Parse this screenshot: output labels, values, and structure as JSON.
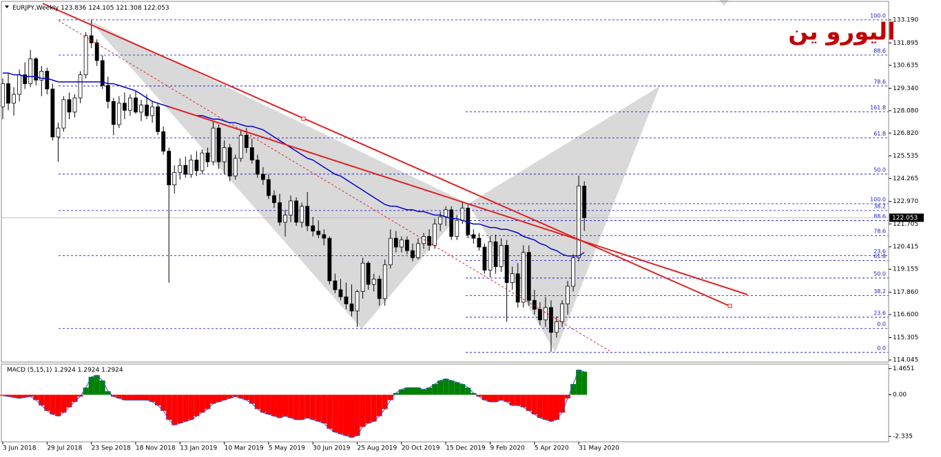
{
  "chart_data": {
    "type": "candlestick",
    "title": "اليورو ين",
    "symbol": "EURJPY,Weekly",
    "categories": [
      "3 Jun 2018",
      null,
      null,
      null,
      null,
      null,
      null,
      null,
      "29 Jul 2018",
      null,
      null,
      null,
      null,
      null,
      null,
      null,
      "23 Sep 2018",
      null,
      null,
      null,
      null,
      null,
      null,
      null,
      "18 Nov 2018",
      null,
      null,
      null,
      null,
      null,
      null,
      null,
      "13 Jan 2019",
      null,
      null,
      null,
      null,
      null,
      null,
      null,
      "10 Mar 2019",
      null,
      null,
      null,
      null,
      null,
      null,
      null,
      "5 May 2019",
      null,
      null,
      null,
      null,
      null,
      null,
      null,
      "30 Jun 2019",
      null,
      null,
      null,
      null,
      null,
      null,
      null,
      "25 Aug 2019",
      null,
      null,
      null,
      null,
      null,
      null,
      null,
      "20 Oct 2019",
      null,
      null,
      null,
      null,
      null,
      null,
      null,
      "15 Dec 2019",
      null,
      null,
      null,
      null,
      null,
      null,
      null,
      "9 Feb 2020",
      null,
      null,
      null,
      null,
      null,
      null,
      null,
      "5 Apr 2020",
      null,
      null,
      null,
      null,
      null,
      null,
      null,
      "31 May 2020",
      null
    ],
    "candles": [
      [
        128.3,
        129.9,
        127.6,
        129.6
      ],
      [
        129.6,
        130.2,
        128.1,
        128.5
      ],
      [
        128.5,
        129.4,
        127.8,
        129.0
      ],
      [
        129.0,
        130.4,
        128.6,
        130.1
      ],
      [
        130.1,
        130.8,
        129.3,
        129.6
      ],
      [
        129.6,
        131.5,
        129.4,
        131.0
      ],
      [
        131.0,
        131.1,
        129.5,
        129.8
      ],
      [
        129.8,
        130.6,
        128.9,
        130.3
      ],
      [
        130.3,
        130.5,
        129.0,
        129.3
      ],
      [
        129.3,
        129.6,
        126.4,
        126.6
      ],
      [
        126.6,
        127.4,
        125.2,
        127.1
      ],
      [
        127.1,
        128.9,
        126.9,
        128.7
      ],
      [
        128.7,
        129.1,
        127.6,
        128.0
      ],
      [
        128.0,
        129.0,
        127.7,
        128.8
      ],
      [
        128.8,
        130.3,
        128.5,
        130.1
      ],
      [
        130.1,
        132.5,
        129.9,
        132.3
      ],
      [
        132.3,
        133.2,
        131.6,
        131.9
      ],
      [
        131.9,
        132.1,
        130.6,
        130.9
      ],
      [
        130.9,
        131.2,
        129.3,
        129.5
      ],
      [
        129.5,
        130.0,
        128.2,
        128.6
      ],
      [
        128.6,
        128.8,
        126.7,
        127.3
      ],
      [
        127.3,
        128.9,
        127.1,
        128.5
      ],
      [
        128.5,
        129.1,
        127.6,
        128.1
      ],
      [
        128.1,
        129.0,
        127.8,
        128.8
      ],
      [
        128.8,
        129.2,
        127.9,
        128.0
      ],
      [
        128.0,
        128.7,
        127.5,
        128.4
      ],
      [
        128.4,
        129.0,
        127.6,
        127.8
      ],
      [
        127.8,
        128.6,
        127.4,
        128.3
      ],
      [
        128.3,
        128.5,
        126.7,
        126.9
      ],
      [
        126.9,
        127.2,
        125.6,
        125.8
      ],
      [
        125.8,
        126.0,
        118.4,
        123.9
      ],
      [
        123.9,
        125.0,
        123.4,
        124.6
      ],
      [
        124.6,
        125.4,
        124.2,
        125.0
      ],
      [
        125.0,
        125.5,
        124.3,
        124.5
      ],
      [
        124.5,
        125.6,
        124.3,
        125.3
      ],
      [
        125.3,
        125.8,
        124.4,
        124.7
      ],
      [
        124.7,
        125.9,
        124.5,
        125.7
      ],
      [
        125.7,
        126.0,
        124.9,
        125.2
      ],
      [
        125.2,
        127.5,
        125.0,
        127.1
      ],
      [
        127.1,
        127.3,
        124.8,
        125.2
      ],
      [
        125.2,
        126.4,
        124.5,
        126.0
      ],
      [
        126.0,
        126.2,
        124.1,
        124.4
      ],
      [
        124.4,
        125.6,
        124.2,
        125.4
      ],
      [
        125.4,
        127.0,
        125.2,
        126.7
      ],
      [
        126.7,
        127.1,
        125.7,
        126.0
      ],
      [
        126.0,
        126.5,
        125.1,
        125.3
      ],
      [
        125.3,
        125.6,
        124.3,
        124.5
      ],
      [
        124.5,
        124.9,
        123.9,
        124.2
      ],
      [
        124.2,
        124.5,
        123.1,
        123.3
      ],
      [
        123.3,
        123.6,
        122.6,
        122.9
      ],
      [
        122.9,
        123.4,
        121.6,
        121.8
      ],
      [
        121.8,
        122.5,
        121.0,
        122.2
      ],
      [
        122.2,
        123.3,
        121.8,
        123.0
      ],
      [
        123.0,
        123.2,
        121.6,
        121.8
      ],
      [
        121.8,
        122.9,
        121.5,
        122.7
      ],
      [
        122.7,
        123.5,
        121.3,
        121.6
      ],
      [
        121.6,
        122.1,
        121.0,
        121.3
      ],
      [
        121.3,
        121.9,
        120.9,
        121.1
      ],
      [
        121.1,
        121.4,
        120.5,
        120.9
      ],
      [
        120.9,
        121.0,
        118.3,
        118.5
      ],
      [
        118.5,
        118.9,
        117.8,
        118.0
      ],
      [
        118.0,
        118.6,
        117.4,
        117.6
      ],
      [
        117.6,
        118.4,
        116.9,
        117.2
      ],
      [
        117.2,
        118.3,
        116.5,
        116.8
      ],
      [
        116.8,
        118.0,
        115.9,
        117.9
      ],
      [
        117.9,
        119.8,
        117.5,
        119.5
      ],
      [
        119.5,
        119.6,
        118.0,
        118.3
      ],
      [
        118.3,
        118.9,
        117.9,
        118.6
      ],
      [
        118.6,
        118.8,
        117.1,
        117.5
      ],
      [
        117.5,
        119.7,
        117.1,
        119.4
      ],
      [
        119.4,
        121.4,
        119.2,
        120.9
      ],
      [
        120.9,
        121.3,
        120.1,
        120.4
      ],
      [
        120.4,
        121.0,
        120.1,
        120.8
      ],
      [
        120.8,
        121.0,
        120.0,
        120.2
      ],
      [
        120.2,
        120.6,
        119.6,
        119.8
      ],
      [
        119.8,
        120.9,
        119.7,
        120.6
      ],
      [
        120.6,
        121.2,
        120.3,
        121.0
      ],
      [
        121.0,
        121.4,
        120.2,
        120.5
      ],
      [
        120.5,
        122.0,
        120.3,
        121.7
      ],
      [
        121.7,
        122.4,
        121.3,
        122.1
      ],
      [
        122.1,
        122.7,
        121.6,
        122.5
      ],
      [
        122.5,
        122.7,
        120.8,
        121.0
      ],
      [
        121.0,
        122.2,
        120.8,
        121.9
      ],
      [
        121.9,
        122.9,
        121.7,
        122.6
      ],
      [
        122.6,
        122.8,
        120.9,
        121.1
      ],
      [
        121.1,
        121.4,
        120.6,
        120.9
      ],
      [
        120.9,
        121.2,
        120.2,
        120.4
      ],
      [
        120.4,
        120.6,
        118.9,
        119.1
      ],
      [
        119.1,
        121.0,
        118.7,
        120.7
      ],
      [
        120.7,
        121.1,
        118.9,
        119.3
      ],
      [
        119.3,
        120.9,
        119.0,
        120.5
      ],
      [
        120.5,
        120.8,
        116.2,
        118.4
      ],
      [
        118.4,
        119.3,
        118.0,
        118.9
      ],
      [
        118.9,
        119.5,
        117.0,
        117.3
      ],
      [
        117.3,
        120.5,
        117.0,
        120.1
      ],
      [
        120.1,
        120.5,
        117.1,
        117.4
      ],
      [
        117.4,
        118.0,
        116.6,
        116.9
      ],
      [
        116.9,
        117.3,
        116.0,
        116.3
      ],
      [
        116.3,
        117.6,
        115.9,
        117.0
      ],
      [
        117.0,
        117.4,
        114.5,
        115.6
      ],
      [
        115.6,
        116.5,
        115.3,
        116.2
      ],
      [
        116.2,
        117.4,
        115.9,
        117.2
      ],
      [
        117.2,
        118.5,
        116.6,
        118.2
      ],
      [
        118.2,
        120.0,
        117.9,
        119.8
      ],
      [
        119.8,
        124.43,
        119.6,
        123.84
      ],
      [
        123.836,
        124.105,
        121.308,
        122.053
      ]
    ],
    "up_color": "#ffffff",
    "down_color": "#000000",
    "ma": {
      "color": "#0000cc",
      "values": [
        130.2,
        130.2,
        130.1,
        130.1,
        130.0,
        130.0,
        130.0,
        129.9,
        129.9,
        129.8,
        129.7,
        129.7,
        129.7,
        129.7,
        129.7,
        129.7,
        129.7,
        129.7,
        129.7,
        129.6,
        129.6,
        129.5,
        129.4,
        129.3,
        129.2,
        129.0,
        128.8,
        128.6,
        128.5,
        128.4,
        128.3,
        128.2,
        128.1,
        128.0,
        127.9,
        127.8,
        127.8,
        127.7,
        127.6,
        127.6,
        127.5,
        127.4,
        127.4,
        127.3,
        127.2,
        127.2,
        127.1,
        127.0,
        126.8,
        126.6,
        126.4,
        126.2,
        126.0,
        125.8,
        125.6,
        125.4,
        125.3,
        125.1,
        124.9,
        124.7,
        124.5,
        124.4,
        124.2,
        124.0,
        123.8,
        123.6,
        123.4,
        123.2,
        123.0,
        122.8,
        122.7,
        122.7,
        122.6,
        122.5,
        122.5,
        122.4,
        122.4,
        122.3,
        122.2,
        122.2,
        122.1,
        122.0,
        122.0,
        121.9,
        121.8,
        121.7,
        121.7,
        121.6,
        121.5,
        121.5,
        121.4,
        121.4,
        121.3,
        121.2,
        121.0,
        120.9,
        120.8,
        120.6,
        120.5,
        120.3,
        120.2,
        120.0,
        119.9,
        119.9,
        119.9,
        120.1
      ]
    },
    "ylim": [
      113.93,
      134.31
    ],
    "yticks": [
      {
        "value": 133.19,
        "label": "133.190"
      },
      131.895,
      130.635,
      {
        "value": 129.34,
        "label": "129.340"
      },
      {
        "value": 128.08,
        "label": "128.080"
      },
      {
        "value": 126.82,
        "label": "126.820"
      },
      125.535,
      124.265,
      {
        "value": 122.97,
        "label": "122.970"
      },
      121.705,
      120.415,
      119.155,
      {
        "value": 117.86,
        "label": "117.860"
      },
      {
        "value": 116.6,
        "label": "116.600"
      },
      115.305,
      114.045
    ],
    "fib_sets": [
      {
        "color": "#0000cc",
        "levels": [
          {
            "label": "100.0",
            "value": 133.19
          },
          {
            "label": "88.6",
            "value": 131.21
          },
          {
            "label": "78.6",
            "value": 129.47
          },
          {
            "label": "61.8",
            "value": 126.55
          },
          {
            "label": "50.0",
            "value": 124.51
          },
          {
            "label": "38.2",
            "value": 122.46
          },
          {
            "label": "23.6",
            "value": 119.92
          },
          {
            "label": "0.0",
            "value": 115.82
          }
        ]
      },
      {
        "color": "#0000cc",
        "levels": [
          {
            "label": "161.8",
            "value": 128.01
          },
          {
            "label": "100.0",
            "value": 122.84
          },
          {
            "label": "88.6",
            "value": 121.89
          },
          {
            "label": "78.6",
            "value": 121.05
          },
          {
            "label": "61.8",
            "value": 119.64
          },
          {
            "label": "50.0",
            "value": 118.66
          },
          {
            "label": "38.2",
            "value": 117.67
          },
          {
            "label": "23.6",
            "value": 116.45
          },
          {
            "label": "0.0",
            "value": 114.47
          }
        ]
      }
    ],
    "macd": {
      "label": "MACD (5,15,1)",
      "up_color": "#008000",
      "down_color": "#ff0000",
      "line_color": "#3050d0",
      "ylim": [
        -2.64,
        1.72
      ],
      "yticks": [
        1.4651,
        {
          "value": 0,
          "label": "0.00"
        },
        -2.335
      ],
      "values": [
        -0.05,
        -0.1,
        -0.15,
        -0.2,
        -0.15,
        -0.1,
        -0.3,
        -0.6,
        -0.9,
        -1.1,
        -1.2,
        -1.0,
        -0.7,
        -0.4,
        -0.1,
        0.4,
        1.0,
        1.1,
        0.8,
        0.2,
        -0.1,
        -0.2,
        -0.3,
        -0.3,
        -0.3,
        -0.3,
        -0.3,
        -0.4,
        -0.6,
        -0.9,
        -1.4,
        -1.7,
        -1.6,
        -1.5,
        -1.4,
        -1.2,
        -1.0,
        -0.8,
        -0.5,
        -0.4,
        -0.3,
        -0.2,
        -0.1,
        -0.2,
        -0.3,
        -0.5,
        -0.8,
        -1.0,
        -1.1,
        -1.2,
        -1.3,
        -1.2,
        -1.3,
        -1.4,
        -1.4,
        -1.3,
        -1.4,
        -1.5,
        -1.6,
        -1.9,
        -2.1,
        -2.2,
        -2.3,
        -2.4,
        -2.3,
        -1.8,
        -1.6,
        -1.5,
        -1.2,
        -0.8,
        -0.3,
        0.1,
        0.3,
        0.4,
        0.4,
        0.4,
        0.3,
        0.4,
        0.6,
        0.8,
        0.9,
        0.8,
        0.7,
        0.6,
        0.4,
        0.1,
        -0.1,
        -0.3,
        -0.4,
        -0.4,
        -0.3,
        -0.4,
        -0.6,
        -0.6,
        -0.7,
        -0.9,
        -1.1,
        -1.3,
        -1.4,
        -1.5,
        -1.4,
        -1.0,
        -0.2,
        0.6,
        1.4,
        1.2924
      ]
    }
  }
}
